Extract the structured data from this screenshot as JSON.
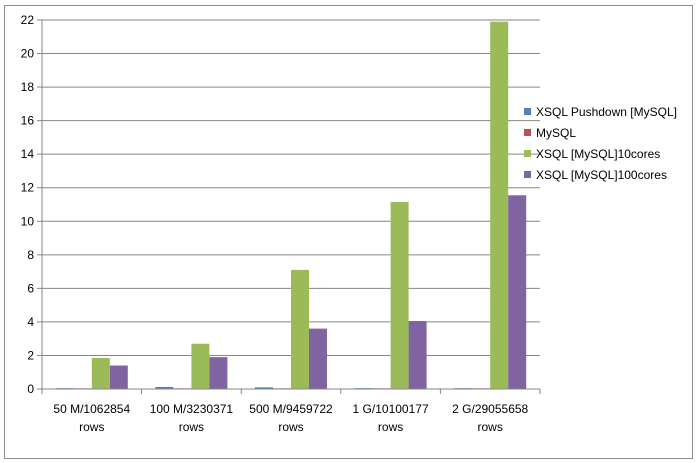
{
  "chart_data": {
    "type": "bar",
    "title": "",
    "xlabel": "",
    "ylabel": "",
    "ylim": [
      0,
      22
    ],
    "yticks": [
      0,
      2,
      4,
      6,
      8,
      10,
      12,
      14,
      16,
      18,
      20,
      22
    ],
    "grid": true,
    "legend_position": "right",
    "categories": [
      [
        "50 M/1062854",
        "rows"
      ],
      [
        "100 M/3230371",
        "rows"
      ],
      [
        "500 M/9459722",
        "rows"
      ],
      [
        "1 G/10100177",
        "rows"
      ],
      [
        "2 G/29055658",
        "rows"
      ]
    ],
    "series": [
      {
        "name": "XSQL Pushdown [MySQL]",
        "color": "#4f81bd",
        "values": [
          0.05,
          0.12,
          0.1,
          0.05,
          0.05
        ]
      },
      {
        "name": "MySQL",
        "color": "#c0504d",
        "values": [
          0.04,
          0.04,
          0.04,
          0.04,
          0.04
        ]
      },
      {
        "name": "XSQL [MySQL]10cores",
        "color": "#9bbb59",
        "values": [
          1.85,
          2.7,
          7.1,
          11.15,
          21.9
        ]
      },
      {
        "name": "XSQL [MySQL]100cores",
        "color": "#8064a2",
        "values": [
          1.4,
          1.9,
          3.6,
          4.05,
          11.55
        ]
      }
    ]
  }
}
